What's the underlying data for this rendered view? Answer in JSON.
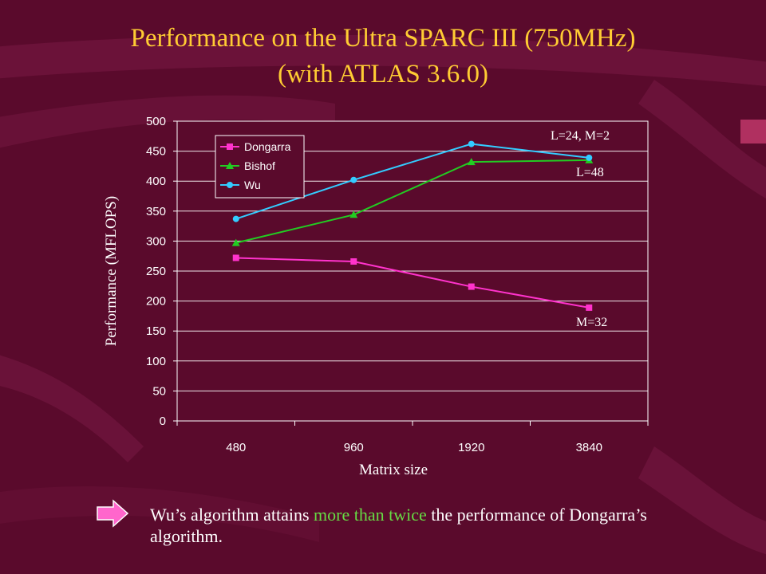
{
  "slide": {
    "title_line1": "Performance on the Ultra SPARC III (750MHz)",
    "title_line2": "(with ATLAS 3.6.0)",
    "caption_before": "Wu’s algorithm attains ",
    "caption_highlight": "more than twice",
    "caption_after": " the performance of Dongarra’s algorithm.",
    "colors": {
      "background": "#5a0a2c",
      "title": "#ffcc33",
      "highlight": "#66dd44",
      "arrow": "#ff66cc"
    }
  },
  "chart_data": {
    "type": "line",
    "categories": [
      "480",
      "960",
      "1920",
      "3840"
    ],
    "xlabel": "Matrix size",
    "ylabel": "Performance (MFLOPS)",
    "ylim": [
      0,
      500
    ],
    "yticks": [
      "0",
      "50",
      "100",
      "150",
      "200",
      "250",
      "300",
      "350",
      "400",
      "450",
      "500"
    ],
    "grid": "horizontal",
    "legend_position": "top-left",
    "series": [
      {
        "name": "Dongarra",
        "color": "#ff33cc",
        "marker": "square",
        "values": [
          272,
          266,
          224,
          189
        ]
      },
      {
        "name": "Bishof",
        "color": "#22cc22",
        "marker": "triangle",
        "values": [
          297,
          344,
          432,
          435
        ]
      },
      {
        "name": "Wu",
        "color": "#33ccff",
        "marker": "circle",
        "values": [
          337,
          402,
          462,
          439
        ]
      }
    ],
    "annotations": [
      {
        "text": "L=24, M=2"
      },
      {
        "text": "L=48"
      },
      {
        "text": "M=32"
      }
    ]
  }
}
